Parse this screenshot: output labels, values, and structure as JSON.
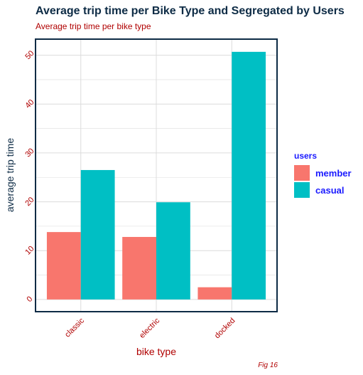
{
  "chart_data": {
    "type": "bar",
    "title": "Average trip time per Bike Type and Segregated by Users",
    "subtitle": "Average trip time per bike type",
    "xlabel": "bike type",
    "ylabel": "average trip time",
    "caption": "Fig 16",
    "categories": [
      "classic",
      "electric",
      "docked"
    ],
    "series": [
      {
        "name": "member",
        "values": [
          13.8,
          12.8,
          2.5
        ],
        "color": "#f8766d"
      },
      {
        "name": "casual",
        "values": [
          26.5,
          19.9,
          50.7
        ],
        "color": "#00bfc4"
      }
    ],
    "yticks": [
      0,
      10,
      20,
      30,
      40,
      50
    ],
    "ylim": [
      -2.5,
      53.3
    ],
    "legend_title": "users",
    "legend_position": "right",
    "grid": true,
    "colors": {
      "tick_label": "#b00000",
      "axis_title": "#b00000",
      "y_title": "#0d2b45",
      "panel_border": "#0d2b45",
      "grid": "#dcdcdc"
    }
  }
}
